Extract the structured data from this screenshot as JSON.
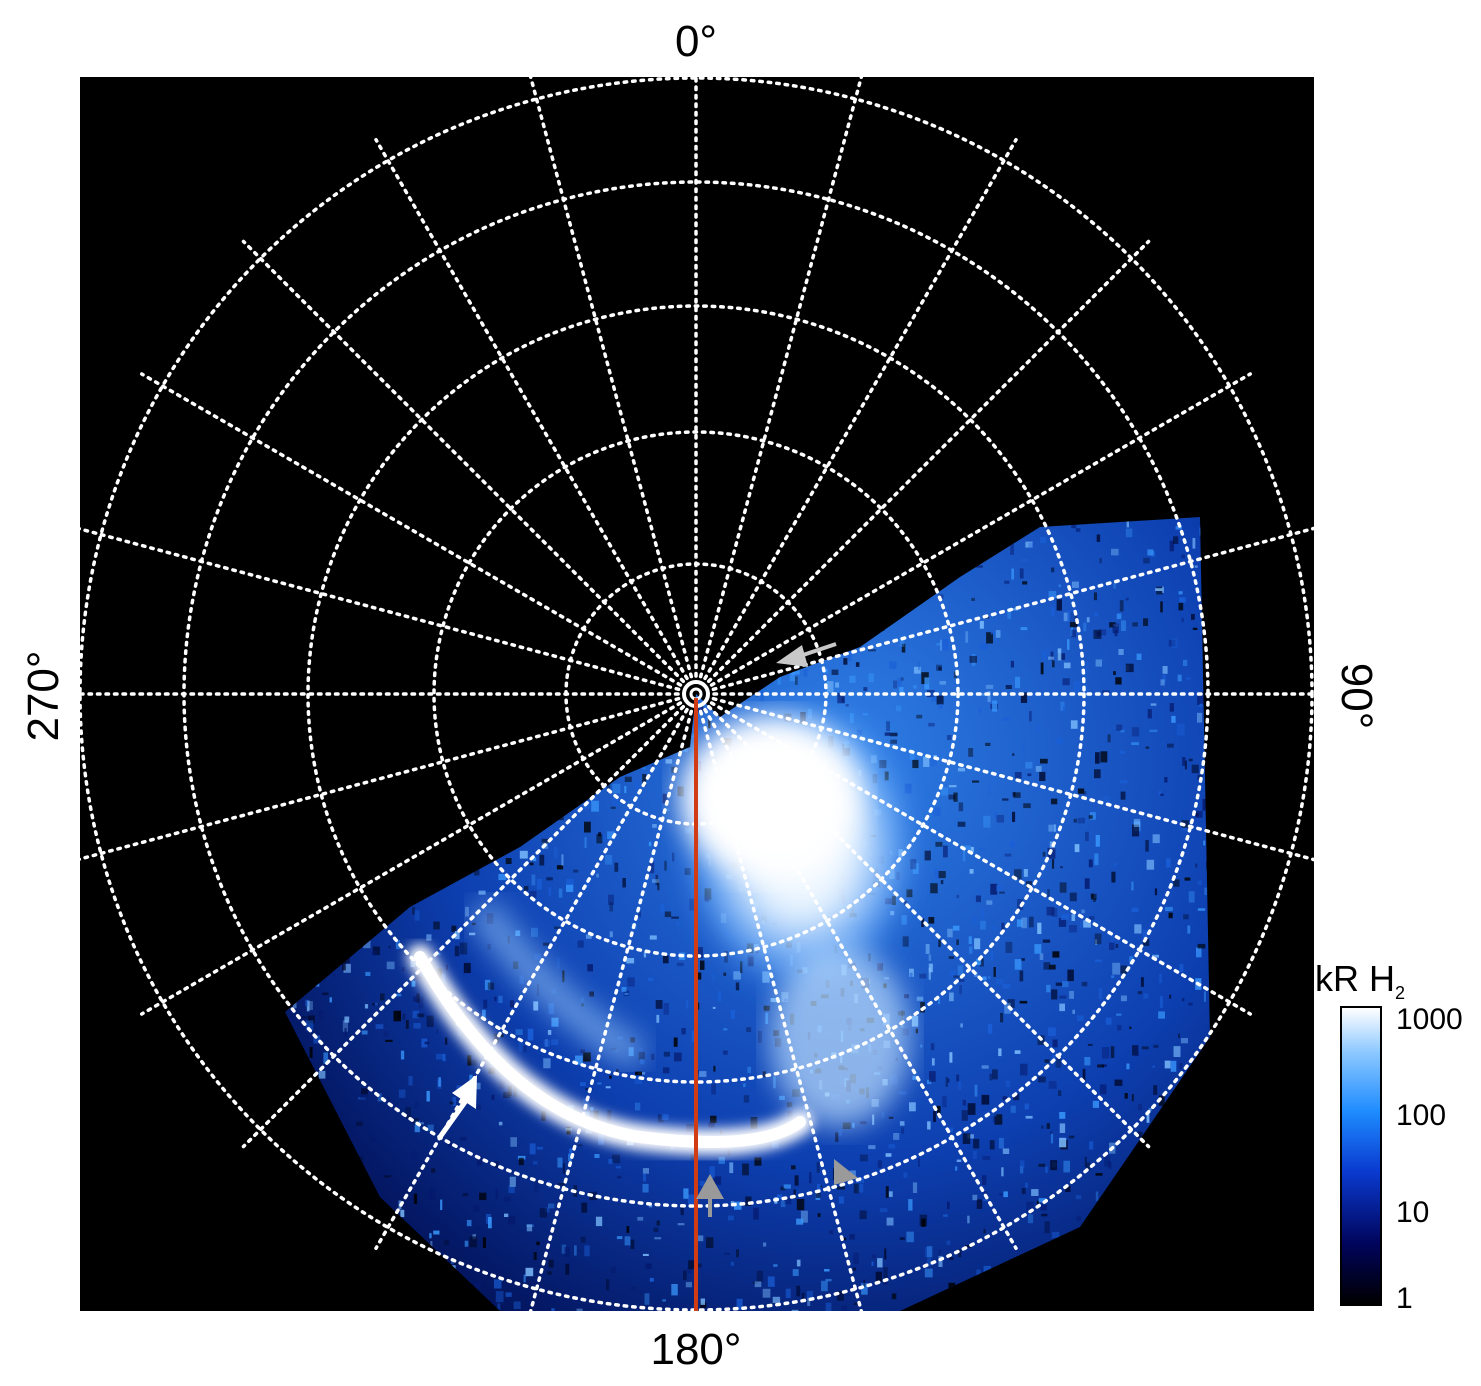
{
  "longitude_labels": {
    "top": "0°",
    "right": "90°",
    "bottom": "180°",
    "left": "270°"
  },
  "colorbar": {
    "title": "kR H",
    "title_subscript": "2",
    "scale": "log",
    "ticks": [
      "1000",
      "100",
      "10",
      "1"
    ],
    "colors": [
      "#000000",
      "#00045a",
      "#0a3bd0",
      "#1e8cff",
      "#8cc8ff",
      "#ffffff"
    ]
  },
  "colors": {
    "background": "#000000",
    "grid": "#ffffff",
    "meridian_line": "#d23c14",
    "arrow_primary": "#ffffff",
    "arrow_secondary": "#9a9a9a"
  },
  "annotations": {
    "arrows": [
      {
        "name": "white-arrow",
        "color": "white"
      },
      {
        "name": "gray-arrow-upper",
        "color": "gray"
      },
      {
        "name": "gray-arrow-bottom-center",
        "color": "gray"
      },
      {
        "name": "gray-arrow-bottom-right",
        "color": "gray"
      }
    ]
  }
}
